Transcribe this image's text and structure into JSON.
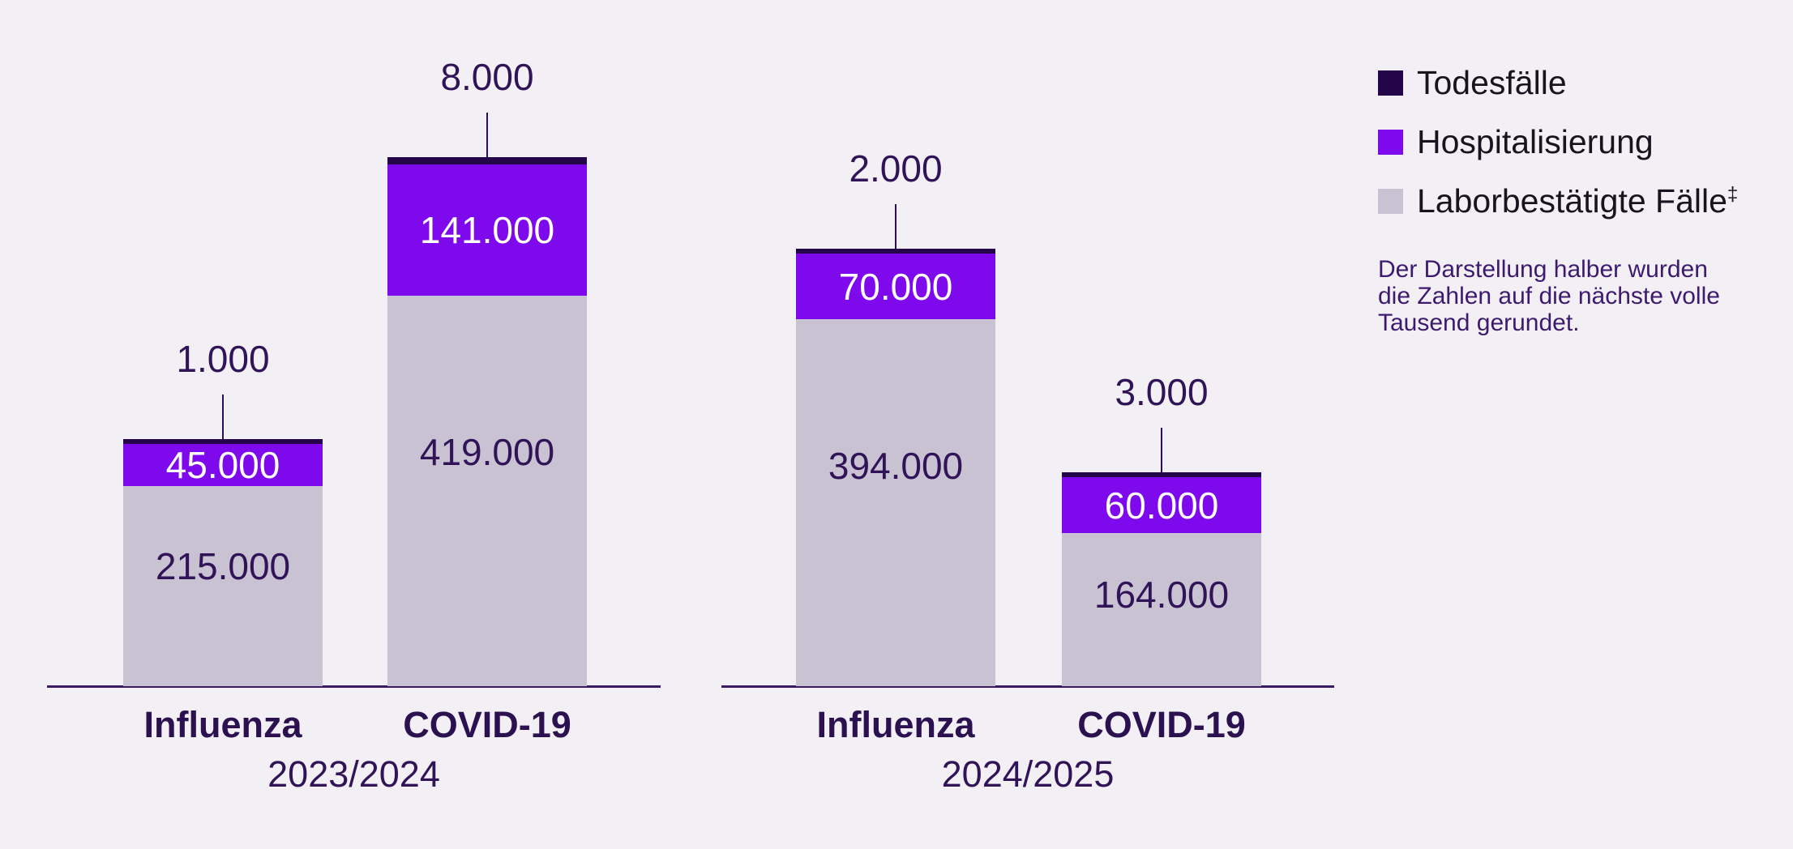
{
  "legend": {
    "items": [
      {
        "label": "Todesfälle",
        "color": "#250549"
      },
      {
        "label": "Hospitalisierung",
        "color": "#7e09ec"
      },
      {
        "label": "Laborbestätigte Fälle",
        "superscript": "‡",
        "color": "#c8c2d3"
      }
    ]
  },
  "note": {
    "lines": [
      "Der Darstellung halber wurden",
      "die Zahlen auf die nächste volle",
      "Tausend gerundet."
    ]
  },
  "colors": {
    "background": "#f2f0f5",
    "todesfaelle": "#250549",
    "hospitalisierung": "#7e09ec",
    "laborbestaetigte_faelle": "#c8c2d3",
    "dark_text": "#301457",
    "legend_text": "#18141f",
    "note_text": "#3d1a6e",
    "baseline": "#3a1c63",
    "callout_line": "#2c0e52",
    "white_text": "#ffffff"
  },
  "chart_data": {
    "type": "bar",
    "stacked": true,
    "grid": false,
    "legend_position": "top-right",
    "value_note": "Zahlen auf die nächste volle Tausend gerundet",
    "series_names": [
      "Laborbestätigte Fälle",
      "Hospitalisierung",
      "Todesfälle"
    ],
    "groups": [
      {
        "season": "2023/2024",
        "bars": [
          {
            "category": "Influenza",
            "total": 261000,
            "segments": [
              {
                "series": "Laborbestätigte Fälle",
                "value": 215000,
                "label": "215.000"
              },
              {
                "series": "Hospitalisierung",
                "value": 45000,
                "label": "45.000"
              },
              {
                "series": "Todesfälle",
                "value": 1000,
                "label": "1.000",
                "callout": true
              }
            ]
          },
          {
            "category": "COVID-19",
            "total": 568000,
            "segments": [
              {
                "series": "Laborbestätigte Fälle",
                "value": 419000,
                "label": "419.000"
              },
              {
                "series": "Hospitalisierung",
                "value": 141000,
                "label": "141.000"
              },
              {
                "series": "Todesfälle",
                "value": 8000,
                "label": "8.000",
                "callout": true
              }
            ]
          }
        ]
      },
      {
        "season": "2024/2025",
        "bars": [
          {
            "category": "Influenza",
            "total": 466000,
            "segments": [
              {
                "series": "Laborbestätigte Fälle",
                "value": 394000,
                "label": "394.000"
              },
              {
                "series": "Hospitalisierung",
                "value": 70000,
                "label": "70.000"
              },
              {
                "series": "Todesfälle",
                "value": 2000,
                "label": "2.000",
                "callout": true
              }
            ]
          },
          {
            "category": "COVID-19",
            "total": 227000,
            "segments": [
              {
                "series": "Laborbestätigte Fälle",
                "value": 164000,
                "label": "164.000"
              },
              {
                "series": "Hospitalisierung",
                "value": 60000,
                "label": "60.000",
                "callout": false
              },
              {
                "series": "Todesfälle",
                "value": 3000,
                "label": "3.000",
                "callout": true
              }
            ]
          }
        ]
      }
    ]
  }
}
